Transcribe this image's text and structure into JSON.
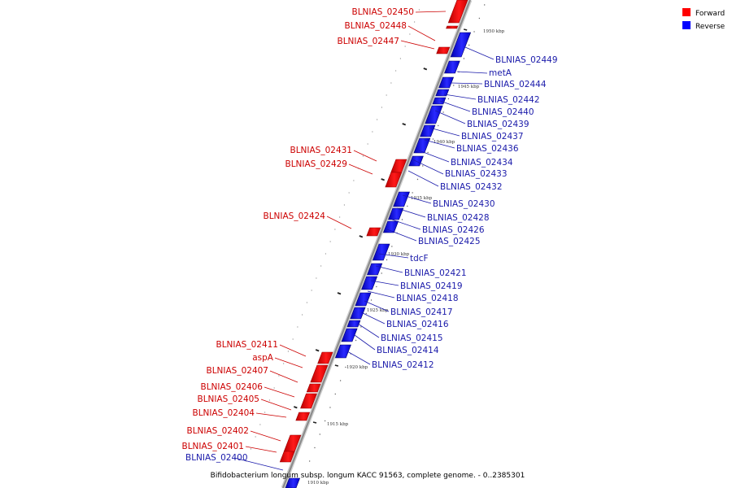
{
  "caption": "Bifidobacterium longum subsp. longum KACC 91563, complete genome. - 0..2385301",
  "legend": [
    {
      "label": "Forward",
      "color": "#ff0000"
    },
    {
      "label": "Reverse",
      "color": "#0000ff"
    }
  ],
  "colors": {
    "forward": "#e02020",
    "forward_label": "#cc0000",
    "reverse": "#1a1aff",
    "reverse_label": "#1a1aaa",
    "backbone": "#999999"
  },
  "ticks": [
    "1950 kbp",
    "1945 kbp",
    "1940 kbp",
    "1935 kbp",
    "1930 kbp",
    "1925 kbp",
    "1920 kbp",
    "1915 kbp",
    "1910 kbp"
  ],
  "forward_genes": [
    "BLNIAS_02450",
    "BLNIAS_02448",
    "BLNIAS_02447",
    "BLNIAS_02431",
    "BLNIAS_02429",
    "BLNIAS_02424",
    "BLNIAS_02411",
    "aspA",
    "BLNIAS_02407",
    "BLNIAS_02406",
    "BLNIAS_02405",
    "BLNIAS_02404",
    "BLNIAS_02402",
    "BLNIAS_02401"
  ],
  "reverse_genes": [
    "BLNIAS_02449",
    "metA",
    "BLNIAS_02444",
    "BLNIAS_02442",
    "BLNIAS_02440",
    "BLNIAS_02439",
    "BLNIAS_02437",
    "BLNIAS_02436",
    "BLNIAS_02434",
    "BLNIAS_02433",
    "BLNIAS_02432",
    "BLNIAS_02430",
    "BLNIAS_02428",
    "BLNIAS_02426",
    "BLNIAS_02425",
    "tdcF",
    "BLNIAS_02421",
    "BLNIAS_02419",
    "BLNIAS_02418",
    "BLNIAS_02417",
    "BLNIAS_02416",
    "BLNIAS_02415",
    "BLNIAS_02414",
    "BLNIAS_02412",
    "BLNIAS_02400"
  ]
}
